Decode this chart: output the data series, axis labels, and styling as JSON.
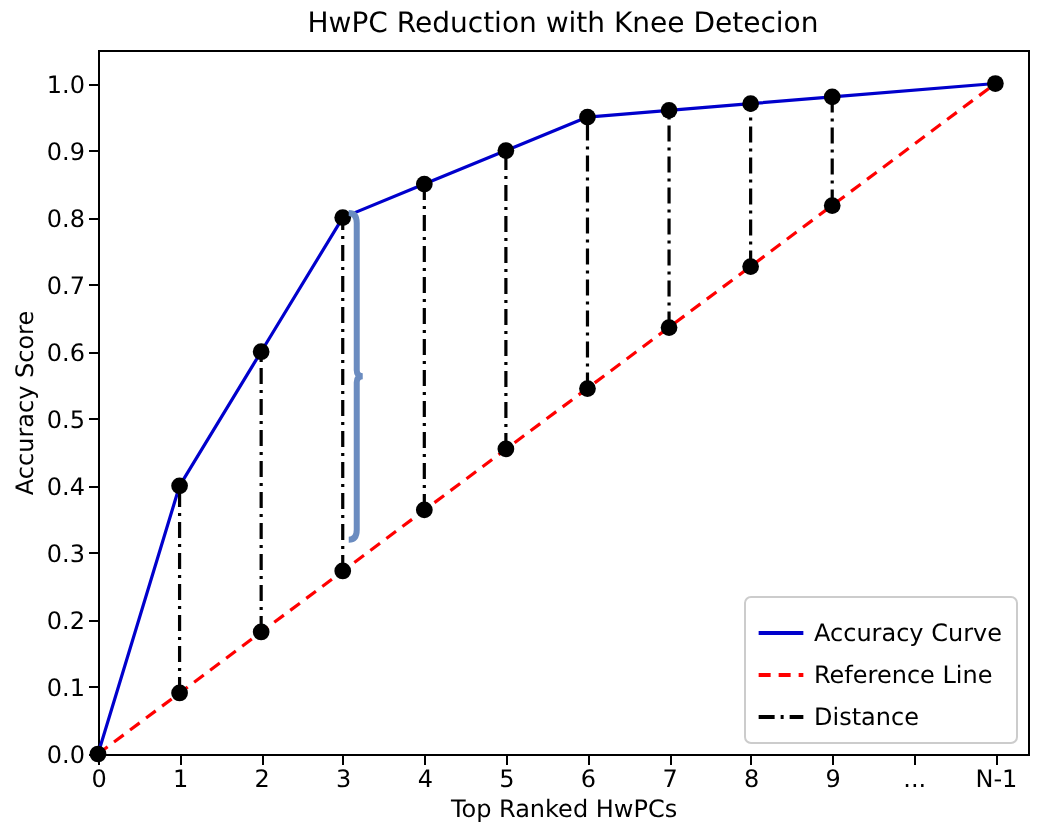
{
  "chart_data": {
    "type": "line",
    "title": "HwPC Reduction with Knee Detecion",
    "xlabel": "Top Ranked HwPCs",
    "ylabel": "Accuracy Score",
    "xlim": [
      0,
      11.4
    ],
    "ylim": [
      0,
      1.05
    ],
    "xticks": [
      0,
      1,
      2,
      3,
      4,
      5,
      6,
      7,
      8,
      9,
      {
        "value": 10,
        "label": "..."
      },
      {
        "value": 11,
        "label": "N-1"
      }
    ],
    "yticks": [
      {
        "value": 0,
        "label": "0.0"
      },
      0.1,
      0.2,
      0.3,
      0.4,
      0.5,
      0.6,
      0.7,
      0.8,
      0.9,
      {
        "value": 1,
        "label": "1.0"
      }
    ],
    "legend": "bottom right",
    "series": [
      {
        "name": "Accuracy Curve",
        "color": "#0000cc",
        "line_style": "solid",
        "marker": "none",
        "x": [
          0,
          1,
          2,
          3,
          4,
          5,
          6,
          7,
          8,
          9,
          11
        ],
        "values": [
          0,
          0.4,
          0.6,
          0.8,
          0.85,
          0.9,
          0.95,
          0.96,
          0.97,
          0.98,
          1.0
        ]
      },
      {
        "name": "Reference Line",
        "color": "#ff0000",
        "line_style": "dashed",
        "marker": "none",
        "x": [
          0,
          11
        ],
        "values": [
          0,
          1.0
        ]
      },
      {
        "name": "Distance",
        "color": "#000000",
        "line_style": "dashdot",
        "marker": "circle",
        "x": [
          1,
          1
        ],
        "values": [
          0.091,
          0.4
        ]
      },
      {
        "color": "#000000",
        "line_style": "dashdot",
        "marker": "circle",
        "x": [
          2,
          2
        ],
        "values": [
          0.182,
          0.6
        ]
      },
      {
        "color": "#000000",
        "line_style": "dashdot",
        "marker": "circle",
        "x": [
          3,
          3
        ],
        "values": [
          0.273,
          0.8
        ]
      },
      {
        "color": "#000000",
        "line_style": "dashdot",
        "marker": "circle",
        "x": [
          4,
          4
        ],
        "values": [
          0.364,
          0.85
        ]
      },
      {
        "color": "#000000",
        "line_style": "dashdot",
        "marker": "circle",
        "x": [
          5,
          5
        ],
        "values": [
          0.455,
          0.9
        ]
      },
      {
        "color": "#000000",
        "line_style": "dashdot",
        "marker": "circle",
        "x": [
          6,
          6
        ],
        "values": [
          0.545,
          0.95
        ]
      },
      {
        "color": "#000000",
        "line_style": "dashdot",
        "marker": "circle",
        "x": [
          7,
          7
        ],
        "values": [
          0.636,
          0.96
        ]
      },
      {
        "color": "#000000",
        "line_style": "dashdot",
        "marker": "circle",
        "x": [
          8,
          8
        ],
        "values": [
          0.727,
          0.97
        ]
      },
      {
        "color": "#000000",
        "line_style": "dashdot",
        "marker": "circle",
        "x": [
          9,
          9
        ],
        "values": [
          0.818,
          0.98
        ]
      },
      {
        "type": "scatter",
        "color": "#000000",
        "marker": "circle",
        "x": [
          0,
          11
        ],
        "values": [
          0,
          1.0
        ]
      }
    ]
  }
}
